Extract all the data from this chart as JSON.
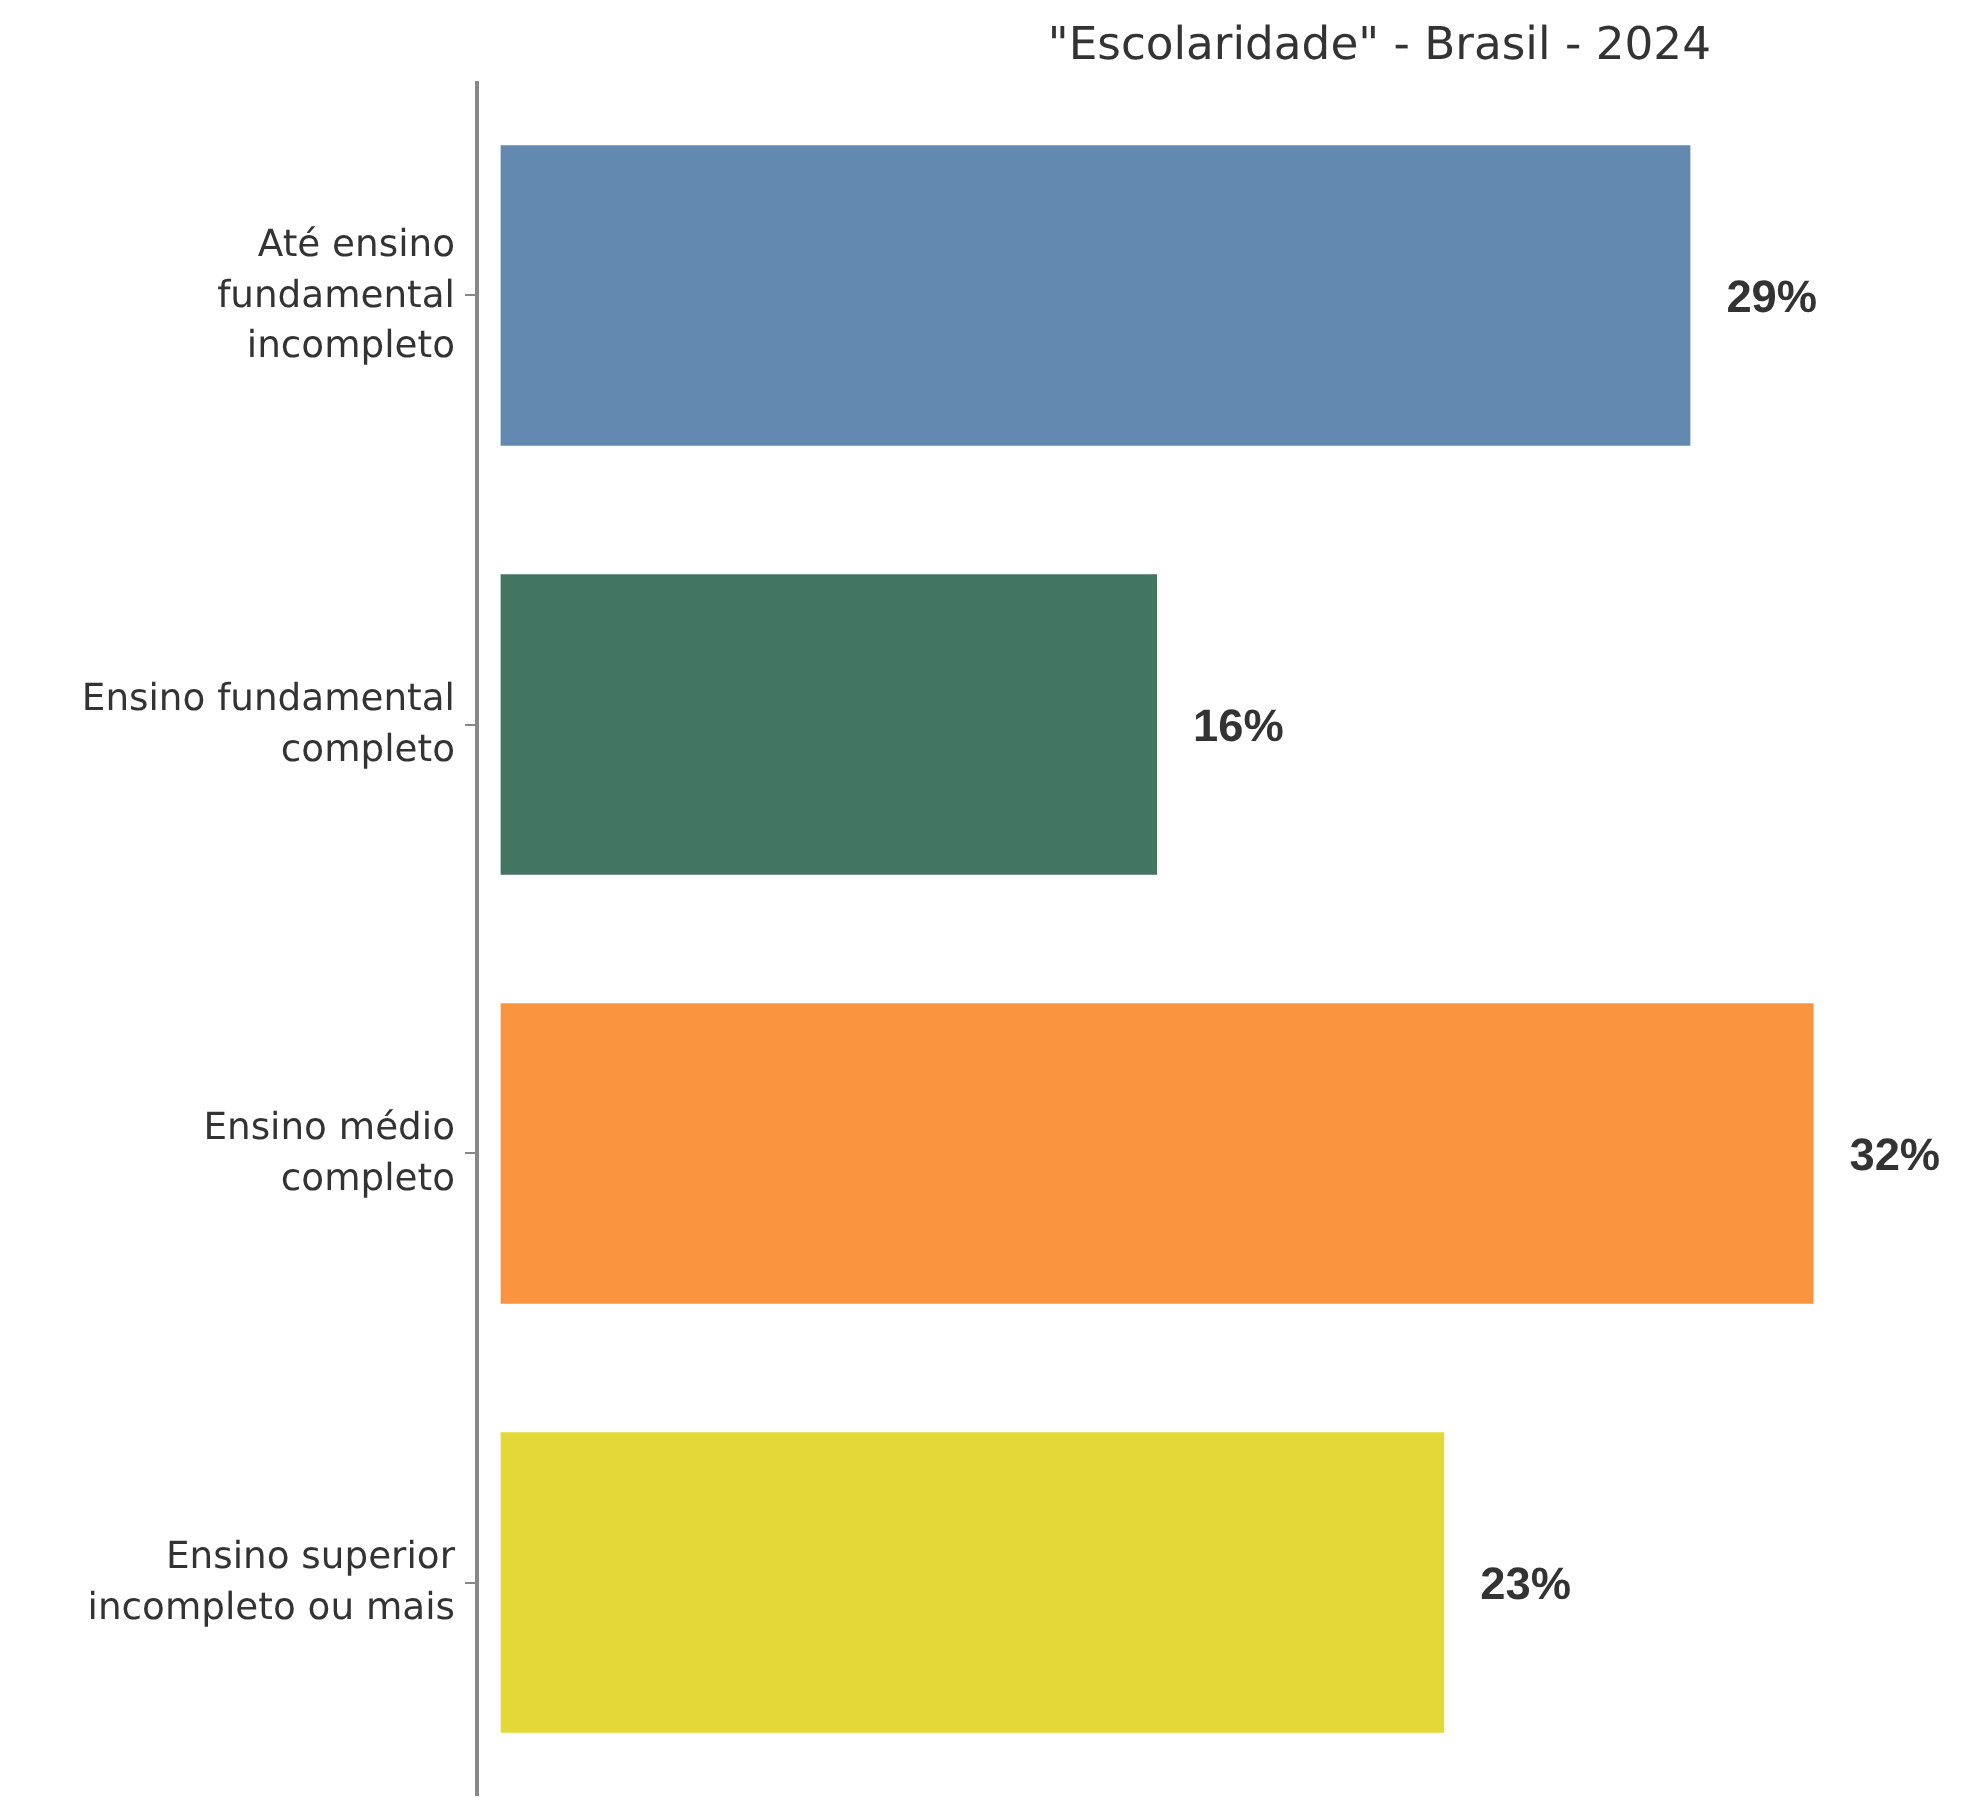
{
  "chart_data": {
    "type": "bar",
    "orientation": "horizontal",
    "title": "\"Escolaridade\" - Brasil - 2024",
    "categories": [
      "Até ensino fundamental incompleto",
      "Ensino fundamental completo",
      "Ensino médio completo",
      "Ensino superior incompleto ou mais"
    ],
    "values": [
      29,
      16,
      32,
      23
    ],
    "colors": [
      "#6389b0",
      "#437563",
      "#fa943e",
      "#e3d838"
    ],
    "value_labels": [
      "29%",
      "16%",
      "32%",
      "23%"
    ],
    "grid": false
  }
}
